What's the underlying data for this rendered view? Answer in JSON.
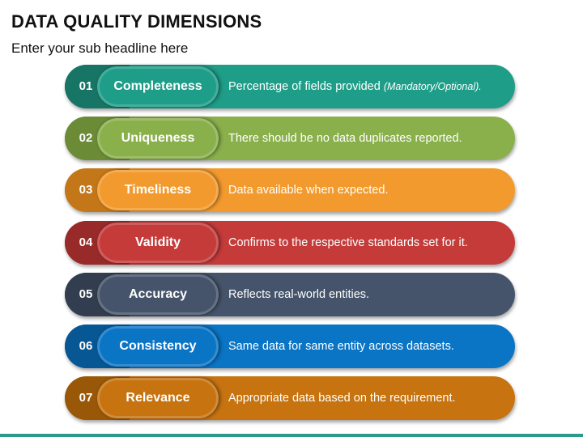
{
  "header": {
    "title": "DATA QUALITY DIMENSIONS",
    "subtitle": "Enter your sub headline here"
  },
  "rows": [
    {
      "num": "01",
      "label": "Completeness",
      "desc": "Percentage of fields provided ",
      "note": "(Mandatory/Optional).",
      "color": "#1e9d88",
      "dark": "#177565"
    },
    {
      "num": "02",
      "label": "Uniqueness",
      "desc": "There should be no data duplicates reported.",
      "note": "",
      "color": "#8ab04c",
      "dark": "#6b8b37"
    },
    {
      "num": "03",
      "label": "Timeliness",
      "desc": "Data available when expected.",
      "note": "",
      "color": "#f29a2e",
      "dark": "#c47718"
    },
    {
      "num": "04",
      "label": "Validity",
      "desc": "Confirms to the respective standards set for it.",
      "note": "",
      "color": "#c43b3a",
      "dark": "#982a2a"
    },
    {
      "num": "05",
      "label": "Accuracy",
      "desc": "Reflects real-world entities.",
      "note": "",
      "color": "#45546a",
      "dark": "#323e4f"
    },
    {
      "num": "06",
      "label": "Consistency",
      "desc": "Same data for same entity across datasets.",
      "note": "",
      "color": "#0a74c5",
      "dark": "#075795"
    },
    {
      "num": "07",
      "label": "Relevance",
      "desc": "Appropriate data based on the requirement.",
      "note": "",
      "color": "#c77310",
      "dark": "#995708"
    }
  ]
}
